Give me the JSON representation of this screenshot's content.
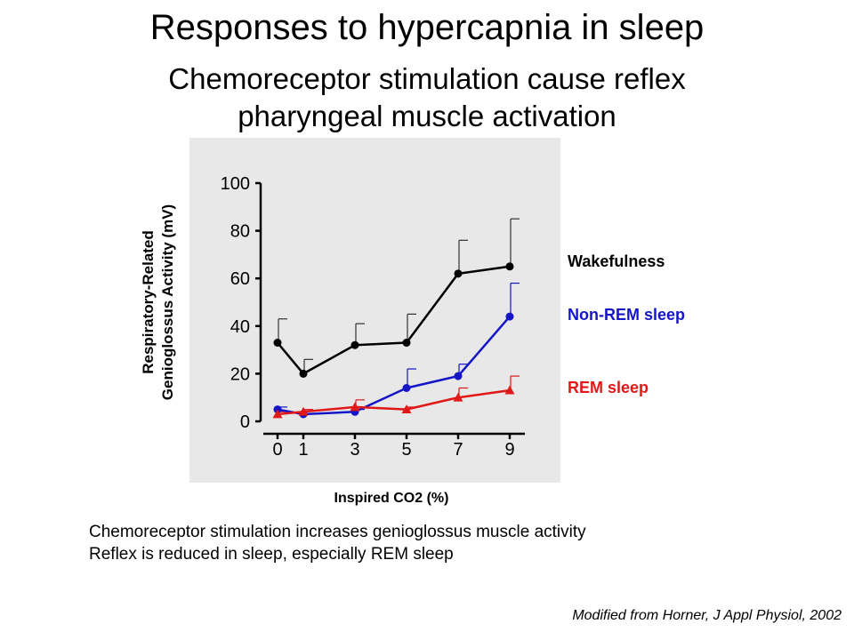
{
  "slide": {
    "title": "Responses to hypercapnia in sleep",
    "subtitle_line1": "Chemoreceptor stimulation cause reflex",
    "subtitle_line2": "pharyngeal muscle activation",
    "notes": [
      "Chemoreceptor stimulation increases genioglossus muscle activity",
      "Reflex is reduced in sleep, especially REM sleep"
    ],
    "citation": "Modified from Horner, J Appl Physiol, 2002"
  },
  "chart_data": {
    "type": "line",
    "xlabel": "Inspired CO2 (%)",
    "ylabel_line1": "Respiratory-Related",
    "ylabel_line2": "Genioglossus Activity (mV)",
    "x": [
      0,
      1,
      3,
      5,
      7,
      9
    ],
    "x_ticks": [
      "0",
      "1",
      "3",
      "5",
      "7",
      "9"
    ],
    "y_ticks": [
      "0",
      "20",
      "40",
      "60",
      "80",
      "100"
    ],
    "ylim": [
      0,
      100
    ],
    "grid": false,
    "legend_placement": "right",
    "series": [
      {
        "name": "Wakefulness",
        "color": "#000000",
        "marker": "circle",
        "values": [
          33,
          20,
          32,
          33,
          62,
          65
        ],
        "error_upper": [
          43,
          26,
          41,
          45,
          76,
          85
        ]
      },
      {
        "name": "Non-REM sleep",
        "color": "#1515c8",
        "marker": "circle",
        "values": [
          5,
          3,
          4,
          14,
          19,
          44
        ],
        "error_upper": [
          6,
          5,
          5,
          22,
          24,
          58
        ]
      },
      {
        "name": "REM sleep",
        "color": "#e01818",
        "marker": "triangle",
        "values": [
          3,
          4,
          6,
          5,
          10,
          13
        ],
        "error_upper": [
          4,
          5,
          9,
          6,
          14,
          19
        ]
      }
    ]
  }
}
